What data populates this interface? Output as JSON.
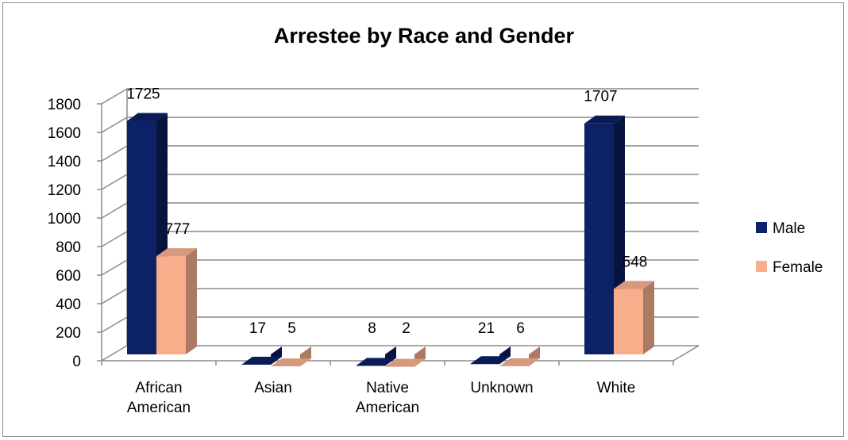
{
  "chart_data": {
    "type": "bar",
    "title": "Arrestee by Race and Gender",
    "categories": [
      [
        "African",
        "American"
      ],
      [
        "Asian"
      ],
      [
        "Native",
        "American"
      ],
      [
        "Unknown"
      ],
      [
        "White"
      ]
    ],
    "series": [
      {
        "name": "Male",
        "color": "#0d2266",
        "side_color": "#071440",
        "top_color": "#0a1b55",
        "values": [
          1725,
          17,
          8,
          21,
          1707
        ]
      },
      {
        "name": "Female",
        "color": "#f8ad8b",
        "side_color": "#ab7a63",
        "top_color": "#d59a7e",
        "values": [
          777,
          5,
          2,
          6,
          548
        ]
      }
    ],
    "ylim": [
      0,
      1800
    ],
    "yticks": [
      0,
      200,
      400,
      600,
      800,
      1000,
      1200,
      1400,
      1600,
      1800
    ],
    "grid": true,
    "legend": "right",
    "projection": "3d-column"
  }
}
